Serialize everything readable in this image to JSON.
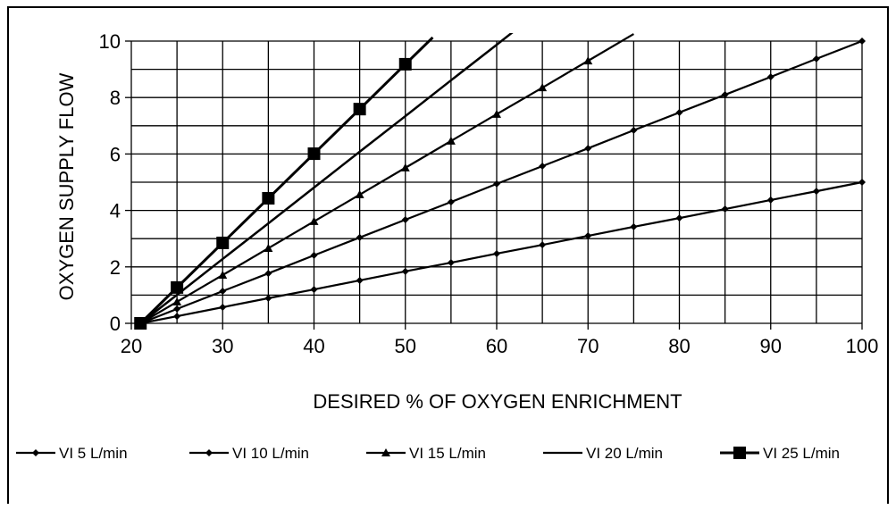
{
  "chart_data": {
    "type": "line",
    "title": "",
    "xlabel": "DESIRED % OF OXYGEN ENRICHMENT",
    "ylabel": "OXYGEN SUPPLY FLOW",
    "xlim": [
      20,
      100
    ],
    "ylim": [
      0,
      10
    ],
    "x_ticks": [
      20,
      30,
      40,
      50,
      60,
      70,
      80,
      90,
      100
    ],
    "y_ticks": [
      0,
      2,
      4,
      6,
      8,
      10
    ],
    "grid": true,
    "legend_position": "bottom",
    "series": [
      {
        "name": "VI 5 L/min",
        "marker": "diamond",
        "color": "#000000",
        "x": [
          21,
          25,
          30,
          35,
          40,
          45,
          50,
          55,
          60,
          65,
          70,
          75,
          80,
          85,
          90,
          95,
          100
        ],
        "y": [
          0,
          0.25,
          0.57,
          0.89,
          1.2,
          1.52,
          1.84,
          2.15,
          2.47,
          2.78,
          3.1,
          3.42,
          3.73,
          4.05,
          4.37,
          4.68,
          5.0
        ]
      },
      {
        "name": "VI 10 L/min",
        "marker": "diamond",
        "color": "#000000",
        "x": [
          21,
          25,
          30,
          35,
          40,
          45,
          50,
          55,
          60,
          65,
          70,
          75,
          80,
          85,
          90,
          95,
          100
        ],
        "y": [
          0,
          0.51,
          1.14,
          1.77,
          2.41,
          3.04,
          3.67,
          4.3,
          4.94,
          5.57,
          6.2,
          6.84,
          7.47,
          8.1,
          8.73,
          9.37,
          10.0
        ]
      },
      {
        "name": "VI 15 L/min",
        "marker": "triangle",
        "color": "#000000",
        "x": [
          21,
          25,
          30,
          35,
          40,
          45,
          50,
          55,
          60,
          65,
          70,
          75
        ],
        "y": [
          0,
          0.76,
          1.71,
          2.66,
          3.61,
          4.56,
          5.51,
          6.46,
          7.41,
          8.35,
          9.3,
          10.25
        ]
      },
      {
        "name": "VI 20 L/min",
        "marker": "none",
        "color": "#000000",
        "x": [
          21,
          25,
          30,
          35,
          40,
          45,
          50,
          55,
          60,
          62
        ],
        "y": [
          0,
          1.01,
          2.28,
          3.54,
          4.81,
          6.08,
          7.34,
          8.61,
          9.87,
          10.38
        ]
      },
      {
        "name": "VI 25 L/min",
        "marker": "square",
        "color": "#000000",
        "x": [
          21,
          25,
          30,
          35,
          40,
          45,
          50,
          53
        ],
        "y": [
          0,
          1.27,
          2.85,
          4.43,
          6.01,
          7.59,
          9.18,
          10.13
        ]
      }
    ]
  }
}
